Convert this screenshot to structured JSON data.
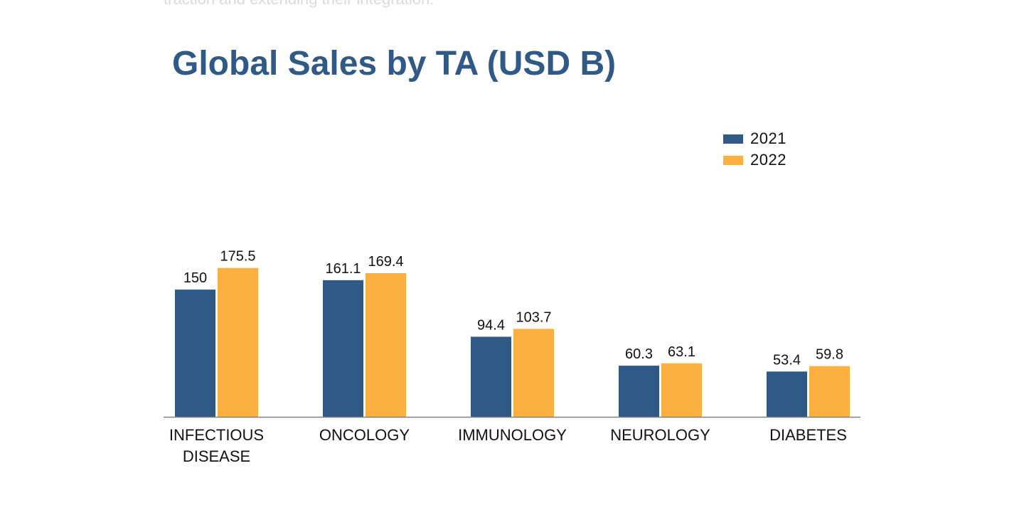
{
  "page": {
    "top_text": "traction and extending their integration."
  },
  "colors": {
    "series_2021": "#2f5a88",
    "series_2022": "#fbb040",
    "axis": "#808080",
    "title": "#2f5a88",
    "text": "#111111"
  },
  "chart_data": {
    "type": "bar",
    "title": "Global Sales by TA (USD B)",
    "xlabel": "",
    "ylabel": "",
    "categories": [
      [
        "INFECTIOUS",
        "DISEASE"
      ],
      [
        "ONCOLOGY"
      ],
      [
        "IMMUNOLOGY"
      ],
      [
        "NEUROLOGY"
      ],
      [
        "DIABETES"
      ]
    ],
    "series": [
      {
        "name": "2021",
        "values": [
          150,
          161.1,
          94.4,
          60.3,
          53.4
        ],
        "labels": [
          "150",
          "161.1",
          "94.4",
          "60.3",
          "53.4"
        ]
      },
      {
        "name": "2022",
        "values": [
          175.5,
          169.4,
          103.7,
          63.1,
          59.8
        ],
        "labels": [
          "175.5",
          "169.4",
          "103.7",
          "63.1",
          "59.8"
        ]
      }
    ],
    "ylim": [
      0,
      200
    ],
    "grid": false,
    "legend": "top-right",
    "data_labels": true
  }
}
